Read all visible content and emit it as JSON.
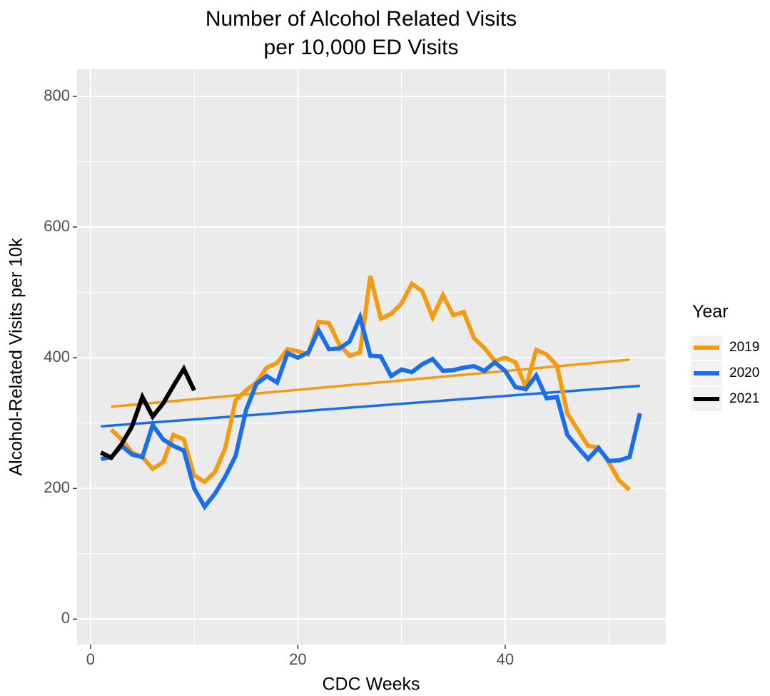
{
  "chart_data": {
    "type": "line",
    "title": "Number of Alcohol Related Visits",
    "subtitle": "per 10,000 ED Visits",
    "x_label": "CDC Weeks",
    "y_label": "Alcohol-Related Visits per 10k",
    "legend_title": "Year",
    "xlim": [
      -1.3,
      55.5
    ],
    "ylim": [
      -39,
      841.5
    ],
    "xticks": [
      0,
      20,
      40
    ],
    "yticks": [
      0,
      200,
      400,
      600,
      800
    ],
    "x_minor_grid": [
      10,
      30,
      50
    ],
    "y_minor_grid": [
      100,
      300,
      500,
      700
    ],
    "grid": true,
    "legend": "right",
    "series": [
      {
        "name": "2019",
        "color": "#f39c12",
        "x": [
          2,
          3,
          4,
          5,
          6,
          7,
          8,
          9,
          10,
          11,
          12,
          13,
          14,
          15,
          16,
          17,
          18,
          19,
          20,
          21,
          22,
          23,
          24,
          25,
          26,
          27,
          28,
          29,
          30,
          31,
          32,
          33,
          34,
          35,
          36,
          37,
          38,
          39,
          40,
          41,
          42,
          43,
          44,
          45,
          46,
          47,
          48,
          49,
          50,
          51,
          52
        ],
        "values": [
          290,
          275,
          255,
          248,
          230,
          240,
          282,
          275,
          220,
          210,
          225,
          262,
          335,
          350,
          362,
          385,
          392,
          413,
          410,
          405,
          455,
          453,
          420,
          403,
          408,
          525,
          460,
          467,
          483,
          513,
          502,
          462,
          496,
          465,
          470,
          430,
          415,
          395,
          400,
          393,
          355,
          412,
          405,
          388,
          315,
          290,
          265,
          263,
          240,
          212,
          198
        ],
        "trend": {
          "x": [
            2,
            52
          ],
          "values": [
            325,
            397
          ]
        }
      },
      {
        "name": "2020",
        "color": "#1a6fe8",
        "x": [
          1,
          2,
          3,
          4,
          5,
          6,
          7,
          8,
          9,
          10,
          11,
          12,
          13,
          14,
          15,
          16,
          17,
          18,
          19,
          20,
          21,
          22,
          23,
          24,
          25,
          26,
          27,
          28,
          29,
          30,
          31,
          32,
          33,
          34,
          35,
          36,
          37,
          38,
          39,
          40,
          41,
          42,
          43,
          44,
          45,
          46,
          47,
          48,
          49,
          50,
          51,
          52,
          53
        ],
        "values": [
          245,
          248,
          265,
          252,
          248,
          297,
          275,
          265,
          258,
          200,
          172,
          192,
          218,
          250,
          320,
          360,
          372,
          362,
          407,
          400,
          408,
          442,
          413,
          414,
          425,
          462,
          403,
          402,
          372,
          382,
          378,
          390,
          398,
          380,
          381,
          385,
          387,
          380,
          393,
          380,
          355,
          352,
          373,
          338,
          340,
          282,
          263,
          245,
          262,
          242,
          243,
          248,
          315
        ],
        "trend": {
          "x": [
            1,
            53
          ],
          "values": [
            295,
            357
          ]
        }
      },
      {
        "name": "2021",
        "color": "#000000",
        "x": [
          1,
          2,
          3,
          4,
          5,
          6,
          7,
          8,
          9,
          10
        ],
        "values": [
          255,
          247,
          268,
          295,
          340,
          310,
          330,
          357,
          383,
          350
        ]
      }
    ]
  }
}
